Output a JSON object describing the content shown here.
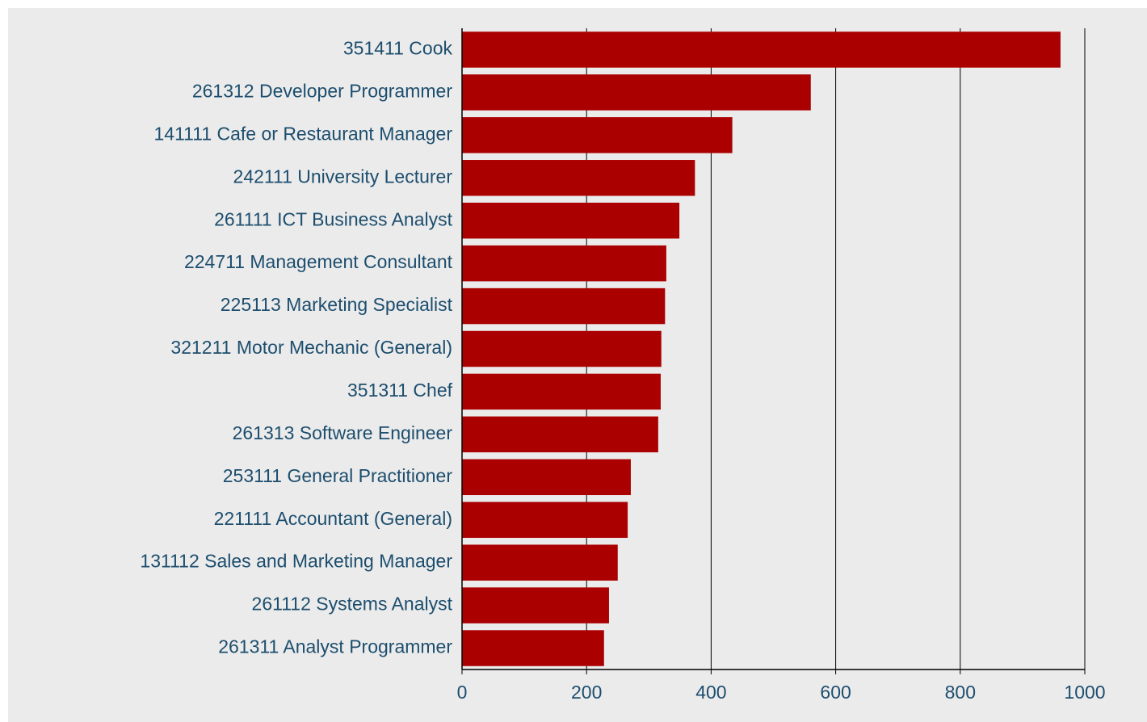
{
  "chart_data": {
    "type": "barh",
    "categories": [
      "351411 Cook",
      "261312 Developer Programmer",
      "141111 Cafe or Restaurant Manager",
      "242111 University Lecturer",
      "261111 ICT Business Analyst",
      "224711 Management Consultant",
      "225113 Marketing Specialist",
      "321211 Motor Mechanic (General)",
      "351311 Chef",
      "261313 Software Engineer",
      "253111 General Practitioner",
      "221111 Accountant (General)",
      "131112 Sales and Marketing Manager",
      "261112 Systems Analyst",
      "261311 Analyst Programmer"
    ],
    "values": [
      961,
      560,
      434,
      374,
      349,
      328,
      326,
      320,
      319,
      315,
      271,
      266,
      250,
      236,
      228
    ],
    "color": "#aa0000",
    "xlim": [
      0,
      1000
    ],
    "xticks": [
      0,
      200,
      400,
      600,
      800,
      1000
    ],
    "grid": true
  }
}
